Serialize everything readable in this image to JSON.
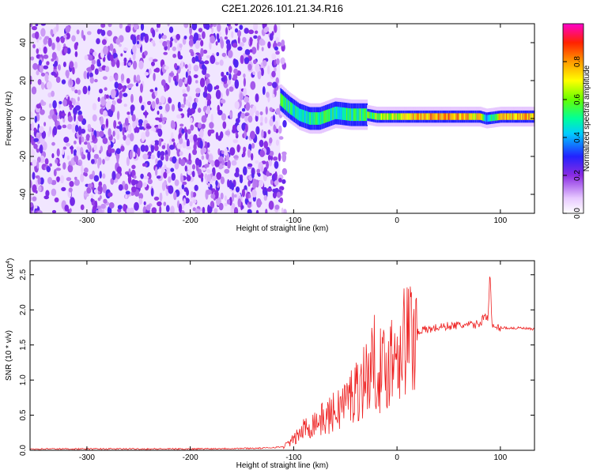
{
  "chart_data": [
    {
      "type": "heatmap",
      "title": "C2E1.2026.101.21.34.R16",
      "xlabel": "Height of straight line (km)",
      "ylabel": "Frequency (Hz)",
      "xlim": [
        -355,
        133
      ],
      "ylim": [
        -50,
        50
      ],
      "xticks": [
        -300,
        -200,
        -100,
        0,
        100
      ],
      "yticks": [
        -40,
        -20,
        0,
        20,
        40
      ],
      "noise_region_x": [
        -355,
        -113
      ],
      "signal_band": [
        {
          "x": -113,
          "freq_center": 10,
          "amp": 0.55
        },
        {
          "x": -105,
          "freq_center": 6,
          "amp": 0.5
        },
        {
          "x": -95,
          "freq_center": 2,
          "amp": 0.45
        },
        {
          "x": -85,
          "freq_center": 0,
          "amp": 0.45
        },
        {
          "x": -75,
          "freq_center": 0,
          "amp": 0.5
        },
        {
          "x": -60,
          "freq_center": 3,
          "amp": 0.5
        },
        {
          "x": -45,
          "freq_center": 2,
          "amp": 0.5
        },
        {
          "x": -30,
          "freq_center": 2,
          "amp": 0.55
        },
        {
          "x": -20,
          "freq_center": 1,
          "amp": 0.6
        },
        {
          "x": 0,
          "freq_center": 1,
          "amp": 0.65
        },
        {
          "x": 20,
          "freq_center": 1,
          "amp": 0.75
        },
        {
          "x": 50,
          "freq_center": 1,
          "amp": 0.8
        },
        {
          "x": 80,
          "freq_center": 1,
          "amp": 0.7
        },
        {
          "x": 86,
          "freq_center": 0,
          "amp": 0.4
        },
        {
          "x": 100,
          "freq_center": 1,
          "amp": 0.75
        },
        {
          "x": 133,
          "freq_center": 1,
          "amp": 0.75
        }
      ],
      "colorbar": {
        "label": "Normalized spectral amplitude",
        "range": [
          0.0,
          1.0
        ],
        "ticks": [
          0.0,
          0.2,
          0.4,
          0.6,
          0.8
        ],
        "tick_labels": [
          "0.0",
          "0.2",
          "0.4",
          "0.6",
          "0.8"
        ]
      }
    },
    {
      "type": "line",
      "xlabel": "Height of straight line (km)",
      "ylabel": "SNR (10 * v/v)",
      "scale_label": "(x10",
      "scale_exponent": "4",
      "scale_close": ")",
      "xlim": [
        -355,
        133
      ],
      "ylim": [
        0,
        2.7
      ],
      "xticks": [
        -300,
        -200,
        -100,
        0,
        100
      ],
      "yticks": [
        0.0,
        0.5,
        1.0,
        1.5,
        2.0,
        2.5
      ],
      "ytick_labels": [
        "0.0",
        "0.5",
        "1.0",
        "1.5",
        "2.0",
        "2.5"
      ],
      "color": "#ee2222",
      "series": [
        {
          "name": "SNR",
          "x": [
            -355,
            -300,
            -200,
            -130,
            -110,
            -100,
            -90,
            -80,
            -70,
            -60,
            -50,
            -40,
            -30,
            -20,
            -15,
            -10,
            -5,
            0,
            5,
            10,
            20,
            30,
            40,
            50,
            60,
            70,
            80,
            85,
            88,
            90,
            92,
            95,
            100,
            110,
            120,
            133
          ],
          "y": [
            0.02,
            0.02,
            0.02,
            0.03,
            0.05,
            0.15,
            0.3,
            0.4,
            0.45,
            0.55,
            0.7,
            0.85,
            1.05,
            1.3,
            1.1,
            1.2,
            1.35,
            1.5,
            1.55,
            1.6,
            1.7,
            1.72,
            1.75,
            1.77,
            1.78,
            1.78,
            1.8,
            1.92,
            1.9,
            2.55,
            1.75,
            1.74,
            1.75,
            1.74,
            1.74,
            1.72
          ]
        }
      ]
    }
  ]
}
